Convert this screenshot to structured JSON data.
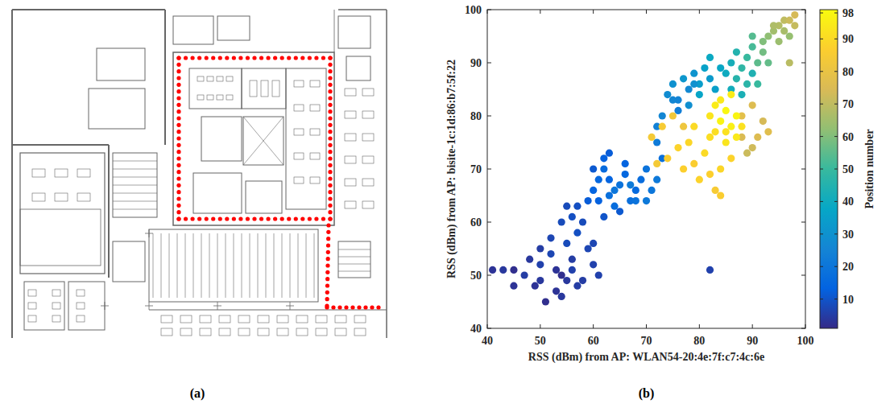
{
  "figure": {
    "panel_labels": {
      "a": "(a)",
      "b": "(b)"
    }
  },
  "chart_data": {
    "type": "scatter",
    "x_label": "RSS (dBm) from AP: WLAN54-20:4e:7f:c7:4c:6e",
    "y_label": "RSS (dBm) from AP: bisite-1c:1d:86:b7:5f:22",
    "xlim": [
      40,
      100
    ],
    "ylim": [
      40,
      100
    ],
    "xticks": [
      40,
      50,
      60,
      70,
      80,
      90,
      100
    ],
    "yticks": [
      40,
      50,
      60,
      70,
      80,
      90,
      100
    ],
    "grid": false,
    "marker": "circle",
    "x": [
      41,
      43,
      45,
      47,
      48,
      50,
      50,
      52,
      53,
      54,
      55,
      56,
      55,
      57,
      58,
      56,
      55,
      57,
      59,
      60,
      58,
      53,
      51,
      54,
      49,
      52,
      54,
      56,
      60,
      61,
      45,
      50,
      57,
      82,
      59,
      60,
      61,
      62,
      62,
      63,
      63,
      64,
      65,
      66,
      64,
      67,
      68,
      66,
      65,
      62,
      61,
      69,
      70,
      72,
      71,
      67,
      60,
      63,
      68,
      70,
      73,
      72,
      72,
      73,
      74,
      75,
      76,
      77,
      78,
      79,
      80,
      81,
      82,
      83,
      84,
      85,
      76,
      78,
      80,
      82,
      79,
      75,
      86,
      87,
      88,
      89,
      90,
      90,
      91,
      92,
      89,
      88,
      91,
      93,
      92,
      87,
      90,
      86,
      93,
      94,
      95,
      96,
      97,
      98,
      96,
      97,
      95,
      94,
      98,
      97,
      88,
      90,
      91,
      92,
      89,
      93,
      88,
      90,
      71,
      73,
      74,
      76,
      77,
      78,
      79,
      80,
      81,
      82,
      83,
      75,
      77,
      84,
      72,
      86,
      84,
      79,
      82,
      83,
      84,
      85,
      86,
      84,
      85,
      87,
      83,
      86,
      85,
      87,
      88,
      82
    ],
    "y": [
      51,
      51,
      51,
      50,
      53,
      52,
      55,
      54,
      51,
      50,
      49,
      51,
      56,
      58,
      60,
      61,
      63,
      63,
      55,
      52,
      49,
      47,
      45,
      46,
      48,
      57,
      60,
      53,
      56,
      50,
      48,
      49,
      48,
      51,
      64,
      66,
      68,
      72,
      70,
      73,
      65,
      63,
      67,
      69,
      66,
      64,
      66,
      71,
      62,
      61,
      64,
      68,
      70,
      68,
      66,
      67,
      70,
      68,
      64,
      64,
      72,
      75,
      78,
      80,
      84,
      86,
      83,
      87,
      85,
      88,
      86,
      89,
      87,
      85,
      89,
      88,
      81,
      82,
      84,
      91,
      86,
      83,
      90,
      92,
      89,
      91,
      93,
      88,
      90,
      92,
      86,
      84,
      86,
      90,
      94,
      87,
      95,
      85,
      95,
      96,
      97,
      98,
      98,
      99,
      96,
      95,
      94,
      97,
      97,
      90,
      76,
      74,
      76,
      79,
      73,
      77,
      80,
      82,
      76,
      78,
      72,
      74,
      70,
      75,
      71,
      68,
      73,
      69,
      66,
      80,
      78,
      70,
      71,
      72,
      65,
      78,
      80,
      82,
      79,
      81,
      78,
      83,
      77,
      80,
      77,
      84,
      75,
      76,
      78,
      76
    ],
    "position": [
      3,
      4,
      2,
      5,
      4,
      6,
      5,
      7,
      3,
      2,
      4,
      6,
      8,
      9,
      8,
      9,
      8,
      9,
      7,
      6,
      5,
      3,
      2,
      4,
      3,
      7,
      8,
      5,
      7,
      6,
      3,
      4,
      5,
      6,
      12,
      14,
      15,
      13,
      16,
      12,
      18,
      17,
      19,
      15,
      20,
      18,
      16,
      14,
      11,
      10,
      13,
      17,
      19,
      21,
      20,
      22,
      11,
      14,
      19,
      21,
      18,
      22,
      24,
      26,
      28,
      30,
      25,
      32,
      27,
      31,
      34,
      36,
      33,
      35,
      38,
      40,
      23,
      29,
      37,
      39,
      30,
      26,
      42,
      45,
      48,
      50,
      52,
      44,
      55,
      58,
      47,
      43,
      50,
      56,
      60,
      46,
      54,
      41,
      62,
      65,
      68,
      70,
      72,
      74,
      66,
      63,
      64,
      67,
      71,
      69,
      75,
      73,
      76,
      74,
      72,
      77,
      78,
      76,
      84,
      85,
      86,
      88,
      87,
      89,
      86,
      88,
      90,
      87,
      85,
      83,
      82,
      89,
      84,
      88,
      86,
      90,
      93,
      95,
      97,
      98,
      96,
      94,
      92,
      97,
      91,
      95,
      93,
      94,
      92,
      91
    ],
    "colorbar": {
      "label": "Position number",
      "range": [
        1,
        99
      ],
      "ticks": [
        10,
        20,
        30,
        40,
        50,
        60,
        70,
        80,
        90,
        98
      ]
    }
  }
}
